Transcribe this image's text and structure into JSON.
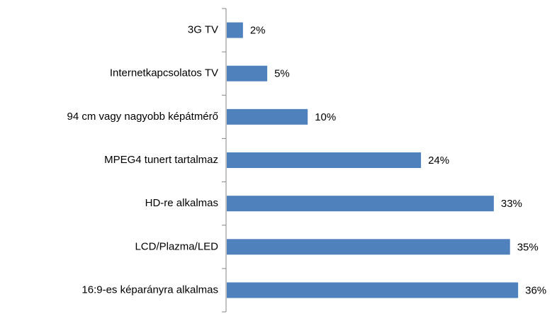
{
  "chart_data": {
    "type": "bar",
    "orientation": "horizontal",
    "categories": [
      "3G TV",
      "Internetkapcsolatos TV",
      "94 cm vagy nagyobb képátmérő",
      "MPEG4 tunert tartalmaz",
      "HD-re alkalmas",
      "LCD/Plazma/LED",
      "16:9-es képarányra alkalmas"
    ],
    "values": [
      2,
      5,
      10,
      24,
      33,
      35,
      36
    ],
    "value_labels": [
      "2%",
      "5%",
      "10%",
      "24%",
      "33%",
      "35%",
      "36%"
    ],
    "color": "#4f81bd"
  }
}
